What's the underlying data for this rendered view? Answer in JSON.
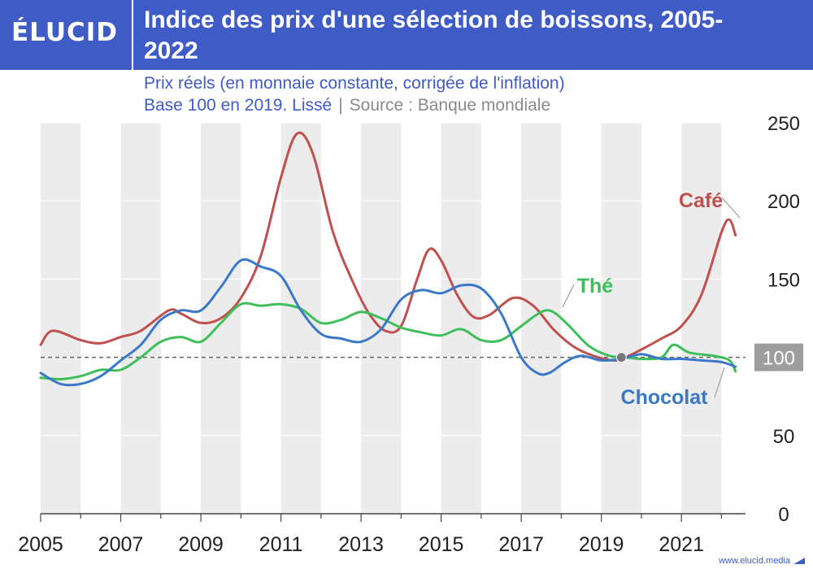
{
  "brand": {
    "logo": "ÉLUCID",
    "footer": "www.elucid.media"
  },
  "title": "Indice des prix d'une sélection de boissons, 2005-2022",
  "subtitle": "Prix réels (en monnaie constante, corrigée de l'inflation)",
  "note": "Base 100 en 2019. Lissé",
  "source": "Source : Banque mondiale",
  "colors": {
    "header": "#3f5bc6",
    "cafe": "#c0504d",
    "the": "#3fbf5a",
    "chocolat": "#3a78c8",
    "band": "#ececec"
  },
  "chart_data": {
    "type": "line",
    "xlim": [
      2005,
      2022.6
    ],
    "ylim": [
      0,
      250
    ],
    "yticks": [
      0,
      50,
      100,
      150,
      200,
      250
    ],
    "xticks": [
      2005,
      2007,
      2009,
      2011,
      2013,
      2015,
      2017,
      2019,
      2021
    ],
    "grid": true,
    "reference_line": {
      "y": 100,
      "label": "100"
    },
    "reference_point": [
      2019.5,
      100
    ],
    "series": [
      {
        "name": "Café",
        "color": "#c0504d",
        "x": [
          2005,
          2005.3,
          2006,
          2006.5,
          2007,
          2007.5,
          2008.2,
          2008.5,
          2009,
          2009.5,
          2010,
          2010.5,
          2011,
          2011.4,
          2011.8,
          2012.3,
          2012.8,
          2013.2,
          2013.6,
          2014,
          2014.4,
          2014.7,
          2015,
          2015.4,
          2015.8,
          2016.2,
          2016.8,
          2017.3,
          2017.8,
          2018.3,
          2018.8,
          2019.3,
          2019.6,
          2020,
          2020.5,
          2021,
          2021.5,
          2022,
          2022.2,
          2022.35
        ],
        "y": [
          108,
          117,
          111,
          109,
          113,
          117,
          130,
          128,
          122,
          125,
          138,
          165,
          215,
          243,
          230,
          180,
          148,
          128,
          117,
          120,
          150,
          169,
          162,
          140,
          126,
          127,
          138,
          133,
          118,
          107,
          101,
          98,
          100,
          105,
          112,
          120,
          140,
          180,
          188,
          178
        ]
      },
      {
        "name": "Thé",
        "color": "#3fbf5a",
        "x": [
          2005,
          2005.5,
          2006,
          2006.5,
          2007,
          2007.5,
          2008,
          2008.5,
          2009,
          2009.5,
          2010,
          2010.5,
          2011,
          2011.5,
          2012,
          2012.5,
          2013,
          2013.5,
          2014,
          2014.5,
          2015,
          2015.5,
          2016,
          2016.5,
          2017,
          2017.5,
          2017.8,
          2018.2,
          2018.7,
          2019.2,
          2019.6,
          2020,
          2020.5,
          2020.8,
          2021.2,
          2021.8,
          2022.2,
          2022.35
        ],
        "y": [
          87,
          86,
          88,
          92,
          92,
          100,
          110,
          113,
          110,
          122,
          134,
          133,
          134,
          131,
          122,
          124,
          129,
          125,
          119,
          116,
          114,
          118,
          111,
          111,
          120,
          129,
          129,
          120,
          107,
          101,
          100,
          99,
          100,
          108,
          103,
          101,
          98,
          91
        ]
      },
      {
        "name": "Chocolat",
        "color": "#3a78c8",
        "x": [
          2005,
          2005.5,
          2006,
          2006.5,
          2007,
          2007.5,
          2008,
          2008.5,
          2009,
          2009.5,
          2010,
          2010.5,
          2011,
          2011.5,
          2012,
          2012.5,
          2013,
          2013.5,
          2014,
          2014.5,
          2015,
          2015.5,
          2016,
          2016.5,
          2017,
          2017.4,
          2017.7,
          2018.1,
          2018.5,
          2019,
          2019.5,
          2020,
          2020.5,
          2021,
          2021.5,
          2022,
          2022.35
        ],
        "y": [
          90,
          83,
          83,
          88,
          98,
          108,
          124,
          130,
          130,
          145,
          162,
          158,
          152,
          130,
          115,
          112,
          110,
          118,
          137,
          143,
          141,
          146,
          144,
          128,
          100,
          90,
          90,
          97,
          101,
          98,
          99,
          102,
          99,
          99,
          98,
          97,
          94
        ]
      }
    ]
  }
}
